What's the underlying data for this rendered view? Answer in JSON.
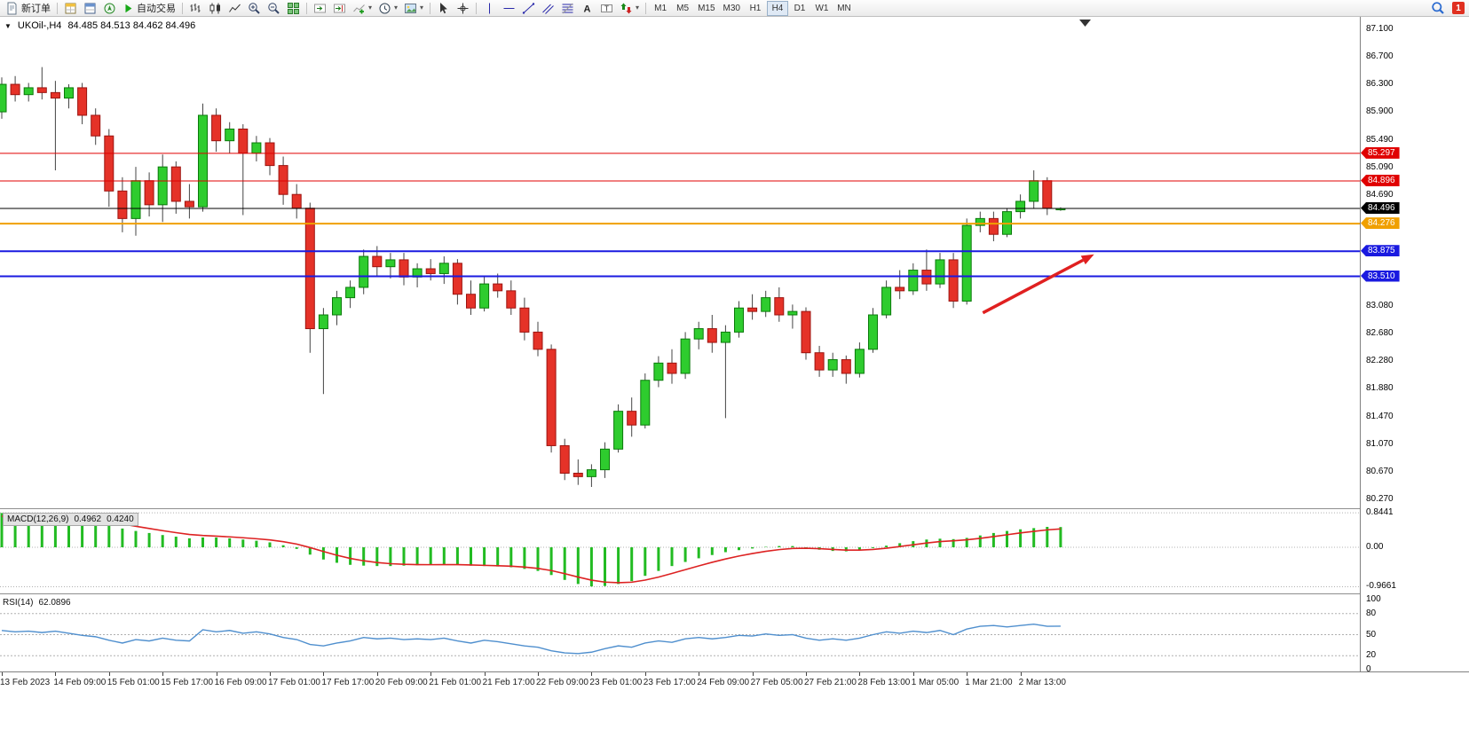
{
  "toolbar": {
    "new_order_label": "新订单",
    "autotrading_label": "自动交易",
    "timeframes": [
      "M1",
      "M5",
      "M15",
      "M30",
      "H1",
      "H4",
      "D1",
      "W1",
      "MN"
    ],
    "active_timeframe": "H4",
    "notification_badge": "1",
    "icon_names": [
      "new-order-icon",
      "market-watch-icon",
      "data-window-icon",
      "navigator-icon",
      "autotrading-icon",
      "bar-chart-icon",
      "candlestick-chart-icon",
      "line-chart-icon",
      "zoom-in-icon",
      "zoom-out-icon",
      "tile-windows-icon",
      "auto-scroll-icon",
      "chart-shift-icon",
      "add-indicator-icon",
      "periods-icon",
      "templates-icon",
      "cursor-icon",
      "crosshair-icon",
      "vertical-line-icon",
      "horizontal-line-icon",
      "trendline-icon",
      "channel-icon",
      "fibonacci-icon",
      "text-icon",
      "text-label-icon",
      "arrows-icon",
      "search-icon",
      "notification-badge"
    ]
  },
  "chart": {
    "title_symbol": "UKOil-,H4",
    "title_ohlc": "84.485 84.513 84.462 84.496"
  },
  "chart_data": {
    "type": "candlestick",
    "symbol": "UKOil-",
    "timeframe": "H4",
    "last_candle": {
      "open": 84.485,
      "high": 84.513,
      "low": 84.462,
      "close": 84.496
    },
    "colors": {
      "up_fill": "#2ecc2e",
      "up_stroke": "#0a7a0a",
      "down_fill": "#e53228",
      "down_stroke": "#9c1410",
      "wick": "#444444",
      "macd_hist": "#22bb22",
      "macd_signal": "#dd2222",
      "rsi_line": "#4f8fce",
      "arrow": "#e02020"
    },
    "price_axis": {
      "min": 80.27,
      "max": 87.1,
      "labels": [
        "87.100",
        "86.700",
        "86.300",
        "85.900",
        "85.490",
        "85.090",
        "84.690",
        "83.080",
        "82.680",
        "82.280",
        "81.880",
        "81.470",
        "81.070",
        "80.670",
        "80.270"
      ],
      "label_prices": [
        87.1,
        86.7,
        86.3,
        85.9,
        85.49,
        85.09,
        84.69,
        83.08,
        82.68,
        82.28,
        81.88,
        81.47,
        81.07,
        80.67,
        80.27
      ]
    },
    "hlines": [
      {
        "price": 85.297,
        "label": "85.297",
        "color": "#e00000",
        "width": 1
      },
      {
        "price": 84.896,
        "label": "84.896",
        "color": "#e00000",
        "width": 1
      },
      {
        "price": 84.496,
        "label": "84.496",
        "color": "#000000",
        "width": 1
      },
      {
        "price": 84.276,
        "label": "84.276",
        "color": "#f0a000",
        "width": 2
      },
      {
        "price": 83.875,
        "label": "83.875",
        "color": "#1a1ae0",
        "width": 2
      },
      {
        "price": 83.51,
        "label": "83.510",
        "color": "#1a1ae0",
        "width": 2
      }
    ],
    "candles": [
      [
        85.9,
        86.4,
        85.8,
        86.3
      ],
      [
        86.3,
        86.42,
        86.05,
        86.15
      ],
      [
        86.15,
        86.32,
        86.05,
        86.25
      ],
      [
        86.25,
        86.55,
        86.08,
        86.18
      ],
      [
        86.18,
        86.35,
        85.05,
        86.1
      ],
      [
        86.1,
        86.3,
        85.95,
        86.25
      ],
      [
        86.25,
        86.32,
        85.72,
        85.85
      ],
      [
        85.85,
        85.95,
        85.42,
        85.55
      ],
      [
        85.55,
        85.65,
        84.52,
        84.75
      ],
      [
        84.75,
        84.95,
        84.15,
        84.35
      ],
      [
        84.35,
        85.1,
        84.1,
        84.9
      ],
      [
        84.9,
        85.02,
        84.38,
        84.55
      ],
      [
        84.55,
        85.28,
        84.3,
        85.1
      ],
      [
        85.1,
        85.18,
        84.42,
        84.6
      ],
      [
        84.6,
        84.85,
        84.35,
        84.52
      ],
      [
        84.52,
        86.02,
        84.45,
        85.85
      ],
      [
        85.85,
        85.95,
        85.32,
        85.48
      ],
      [
        85.48,
        85.75,
        85.3,
        85.65
      ],
      [
        85.65,
        85.72,
        84.4,
        85.3
      ],
      [
        85.3,
        85.55,
        85.18,
        85.45
      ],
      [
        85.45,
        85.52,
        84.98,
        85.12
      ],
      [
        85.12,
        85.25,
        84.55,
        84.7
      ],
      [
        84.7,
        84.85,
        84.35,
        84.5
      ],
      [
        84.5,
        84.58,
        82.4,
        82.75
      ],
      [
        82.75,
        83.05,
        81.8,
        82.95
      ],
      [
        82.95,
        83.3,
        82.8,
        83.2
      ],
      [
        83.2,
        83.45,
        83.05,
        83.35
      ],
      [
        83.35,
        83.9,
        83.25,
        83.8
      ],
      [
        83.8,
        83.95,
        83.52,
        83.65
      ],
      [
        83.65,
        83.85,
        83.48,
        83.75
      ],
      [
        83.75,
        83.85,
        83.38,
        83.5
      ],
      [
        83.5,
        83.7,
        83.35,
        83.62
      ],
      [
        83.62,
        83.76,
        83.45,
        83.55
      ],
      [
        83.55,
        83.8,
        83.4,
        83.7
      ],
      [
        83.7,
        83.76,
        83.1,
        83.25
      ],
      [
        83.25,
        83.45,
        82.95,
        83.05
      ],
      [
        83.05,
        83.5,
        83.0,
        83.4
      ],
      [
        83.4,
        83.55,
        83.2,
        83.3
      ],
      [
        83.3,
        83.45,
        82.95,
        83.05
      ],
      [
        83.05,
        83.2,
        82.58,
        82.7
      ],
      [
        82.7,
        82.85,
        82.35,
        82.45
      ],
      [
        82.45,
        82.52,
        80.95,
        81.05
      ],
      [
        81.05,
        81.15,
        80.55,
        80.65
      ],
      [
        80.65,
        80.85,
        80.48,
        80.6
      ],
      [
        80.6,
        80.78,
        80.45,
        80.7
      ],
      [
        80.7,
        81.1,
        80.58,
        81.0
      ],
      [
        81.0,
        81.65,
        80.95,
        81.55
      ],
      [
        81.55,
        81.75,
        81.18,
        81.35
      ],
      [
        81.35,
        82.1,
        81.3,
        82.0
      ],
      [
        82.0,
        82.35,
        81.9,
        82.25
      ],
      [
        82.25,
        82.45,
        81.95,
        82.1
      ],
      [
        82.1,
        82.7,
        82.02,
        82.6
      ],
      [
        82.6,
        82.85,
        82.45,
        82.75
      ],
      [
        82.75,
        82.95,
        82.4,
        82.55
      ],
      [
        82.55,
        82.8,
        81.45,
        82.7
      ],
      [
        82.7,
        83.15,
        82.62,
        83.05
      ],
      [
        83.05,
        83.25,
        82.88,
        83.0
      ],
      [
        83.0,
        83.3,
        82.92,
        83.2
      ],
      [
        83.2,
        83.35,
        82.85,
        82.95
      ],
      [
        82.95,
        83.1,
        82.75,
        83.0
      ],
      [
        83.0,
        83.06,
        82.3,
        82.4
      ],
      [
        82.4,
        82.5,
        82.05,
        82.15
      ],
      [
        82.15,
        82.4,
        82.05,
        82.3
      ],
      [
        82.3,
        82.36,
        81.95,
        82.1
      ],
      [
        82.1,
        82.55,
        82.04,
        82.45
      ],
      [
        82.45,
        83.05,
        82.4,
        82.95
      ],
      [
        82.95,
        83.45,
        82.9,
        83.35
      ],
      [
        83.35,
        83.6,
        83.18,
        83.3
      ],
      [
        83.3,
        83.7,
        83.24,
        83.6
      ],
      [
        83.6,
        83.9,
        83.3,
        83.4
      ],
      [
        83.4,
        83.85,
        83.34,
        83.75
      ],
      [
        83.75,
        83.85,
        83.05,
        83.15
      ],
      [
        83.15,
        84.35,
        83.1,
        84.25
      ],
      [
        84.25,
        84.45,
        84.15,
        84.35
      ],
      [
        84.35,
        84.45,
        84.02,
        84.12
      ],
      [
        84.12,
        84.5,
        84.08,
        84.45
      ],
      [
        84.45,
        84.7,
        84.35,
        84.6
      ],
      [
        84.6,
        85.05,
        84.5,
        84.9
      ],
      [
        84.9,
        84.95,
        84.4,
        84.5
      ],
      [
        84.485,
        84.513,
        84.462,
        84.496
      ]
    ],
    "time_labels": [
      "13 Feb 2023",
      "14 Feb 09:00",
      "15 Feb 01:00",
      "15 Feb 17:00",
      "16 Feb 09:00",
      "17 Feb 01:00",
      "17 Feb 17:00",
      "20 Feb 09:00",
      "21 Feb 01:00",
      "21 Feb 17:00",
      "22 Feb 09:00",
      "23 Feb 01:00",
      "23 Feb 17:00",
      "24 Feb 09:00",
      "27 Feb 05:00",
      "27 Feb 21:00",
      "28 Feb 13:00",
      "1 Mar 05:00",
      "1 Mar 21:00",
      "2 Mar 13:00"
    ],
    "time_label_step": 4,
    "annotation_arrow": {
      "from_index": 73.2,
      "from_price": 82.98,
      "to_index": 81.5,
      "to_price": 83.83
    },
    "macd": {
      "name": "MACD(12,26,9)",
      "value_main": "0.4962",
      "value_signal": "0.4240",
      "axis_labels": [
        "0.8441",
        "0.00",
        "-0.9661"
      ],
      "axis_values": [
        0.8441,
        0,
        -0.9661
      ],
      "values": [
        0.84,
        0.81,
        0.78,
        0.75,
        0.72,
        0.69,
        0.65,
        0.6,
        0.54,
        0.46,
        0.4,
        0.35,
        0.3,
        0.26,
        0.22,
        0.24,
        0.24,
        0.22,
        0.19,
        0.16,
        0.12,
        0.05,
        -0.04,
        -0.18,
        -0.3,
        -0.38,
        -0.43,
        -0.45,
        -0.46,
        -0.46,
        -0.45,
        -0.44,
        -0.43,
        -0.42,
        -0.43,
        -0.45,
        -0.46,
        -0.47,
        -0.49,
        -0.53,
        -0.58,
        -0.68,
        -0.8,
        -0.9,
        -0.96,
        -0.95,
        -0.9,
        -0.83,
        -0.7,
        -0.58,
        -0.46,
        -0.36,
        -0.27,
        -0.19,
        -0.12,
        -0.07,
        -0.03,
        0.01,
        0.03,
        0.03,
        -0.01,
        -0.06,
        -0.09,
        -0.1,
        -0.07,
        -0.02,
        0.04,
        0.1,
        0.15,
        0.19,
        0.21,
        0.2,
        0.23,
        0.29,
        0.35,
        0.4,
        0.44,
        0.47,
        0.5,
        0.4962
      ]
    },
    "rsi": {
      "name": "RSI(14)",
      "value": "62.0896",
      "axis_labels": [
        "100",
        "80",
        "50",
        "20",
        "0"
      ],
      "axis_values": [
        100,
        80,
        50,
        20,
        0
      ],
      "levels": [
        80,
        50,
        20
      ],
      "values": [
        56,
        54,
        55,
        53,
        55,
        52,
        49,
        47,
        42,
        38,
        43,
        41,
        45,
        42,
        41,
        57,
        54,
        56,
        52,
        54,
        51,
        46,
        43,
        36,
        34,
        38,
        41,
        46,
        44,
        45,
        43,
        44,
        43,
        45,
        41,
        38,
        42,
        40,
        37,
        34,
        32,
        27,
        24,
        23,
        25,
        30,
        34,
        32,
        38,
        41,
        39,
        44,
        46,
        44,
        46,
        49,
        48,
        51,
        49,
        50,
        45,
        42,
        44,
        42,
        45,
        50,
        54,
        52,
        55,
        53,
        56,
        50,
        58,
        62,
        63,
        61,
        63,
        65,
        62,
        62.09
      ]
    }
  }
}
